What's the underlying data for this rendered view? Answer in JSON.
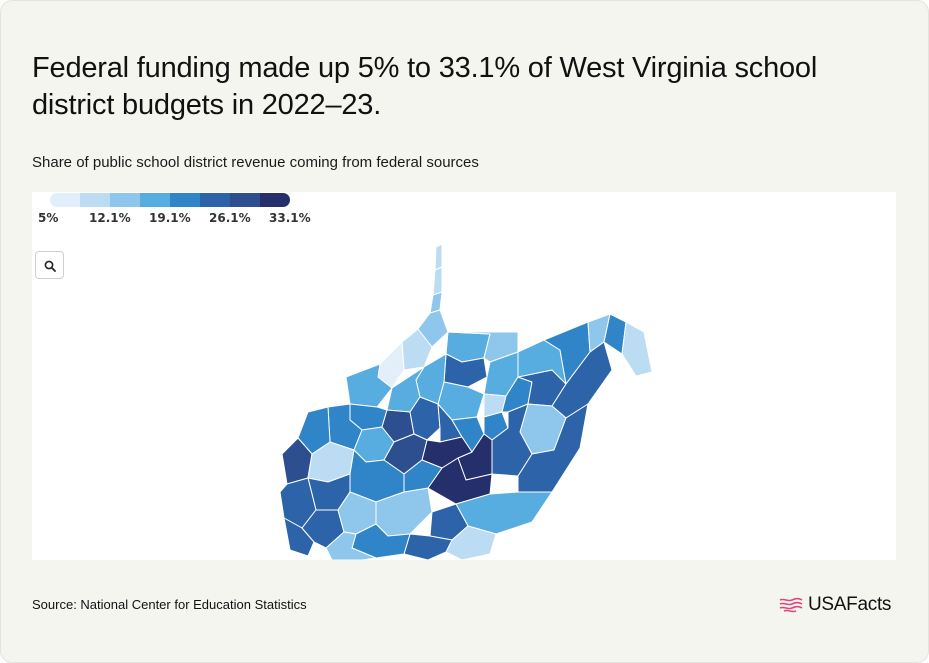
{
  "title": "Federal funding made up 5% to 33.1% of West Virginia school district budgets in 2022–23.",
  "subtitle": "Share of public school district revenue coming from federal sources",
  "legend": {
    "labels": [
      "5%",
      "12.1%",
      "19.1%",
      "26.1%",
      "33.1%"
    ],
    "colors": [
      "#e2effa",
      "#bcdcf3",
      "#8ec7eb",
      "#58ade0",
      "#2f85c8",
      "#2c63a9",
      "#2d4e8f",
      "#252f6b"
    ]
  },
  "zoom_button": {
    "icon": "search-icon"
  },
  "map": {
    "region": "West Virginia",
    "counties": [
      {
        "name": "Hancock",
        "color": "#bcdcf3"
      },
      {
        "name": "Brooke",
        "color": "#bcdcf3"
      },
      {
        "name": "Ohio",
        "color": "#8ec7eb"
      },
      {
        "name": "Marshall",
        "color": "#8ec7eb"
      },
      {
        "name": "Wetzel",
        "color": "#58ade0"
      },
      {
        "name": "Tyler",
        "color": "#bcdcf3"
      },
      {
        "name": "Pleasants",
        "color": "#e2effa"
      },
      {
        "name": "Wood",
        "color": "#58ade0"
      },
      {
        "name": "Monongalia",
        "color": "#8ec7eb"
      },
      {
        "name": "Marion",
        "color": "#2c63a9"
      },
      {
        "name": "Preston",
        "color": "#58ade0"
      },
      {
        "name": "Harrison",
        "color": "#58ade0"
      },
      {
        "name": "Taylor",
        "color": "#bcdcf3"
      },
      {
        "name": "Doddridge",
        "color": "#58ade0"
      },
      {
        "name": "Ritchie",
        "color": "#58ade0"
      },
      {
        "name": "Wirt",
        "color": "#2f85c8"
      },
      {
        "name": "Jackson",
        "color": "#2f85c8"
      },
      {
        "name": "Mason",
        "color": "#2f85c8"
      },
      {
        "name": "Cabell",
        "color": "#2d4e8f"
      },
      {
        "name": "Putnam",
        "color": "#bcdcf3"
      },
      {
        "name": "Roane",
        "color": "#58ade0"
      },
      {
        "name": "Calhoun",
        "color": "#2d4e8f"
      },
      {
        "name": "Gilmer",
        "color": "#2c63a9"
      },
      {
        "name": "Lewis",
        "color": "#2c63a9"
      },
      {
        "name": "Upshur",
        "color": "#2f85c8"
      },
      {
        "name": "Barbour",
        "color": "#2f85c8"
      },
      {
        "name": "Tucker",
        "color": "#2f85c8"
      },
      {
        "name": "Grant",
        "color": "#2c63a9"
      },
      {
        "name": "Mineral",
        "color": "#58ade0"
      },
      {
        "name": "Hampshire",
        "color": "#2f85c8"
      },
      {
        "name": "Morgan",
        "color": "#8ec7eb"
      },
      {
        "name": "Berkeley",
        "color": "#2f85c8"
      },
      {
        "name": "Jefferson",
        "color": "#bcdcf3"
      },
      {
        "name": "Hardy",
        "color": "#2c63a9"
      },
      {
        "name": "Pendleton",
        "color": "#8ec7eb"
      },
      {
        "name": "Randolph",
        "color": "#2c63a9"
      },
      {
        "name": "Pocahontas",
        "color": "#2c63a9"
      },
      {
        "name": "Webster",
        "color": "#252f6b"
      },
      {
        "name": "Braxton",
        "color": "#252f6b"
      },
      {
        "name": "Clay",
        "color": "#2d4e8f"
      },
      {
        "name": "Nicholas",
        "color": "#252f6b"
      },
      {
        "name": "Kanawha",
        "color": "#2f85c8"
      },
      {
        "name": "Lincoln",
        "color": "#2c63a9"
      },
      {
        "name": "Wayne",
        "color": "#2c63a9"
      },
      {
        "name": "Mingo",
        "color": "#2c63a9"
      },
      {
        "name": "Logan",
        "color": "#2c63a9"
      },
      {
        "name": "Boone",
        "color": "#8ec7eb"
      },
      {
        "name": "Raleigh",
        "color": "#8ec7eb"
      },
      {
        "name": "Fayette",
        "color": "#2f85c8"
      },
      {
        "name": "Greenbrier",
        "color": "#58ade0"
      },
      {
        "name": "Summers",
        "color": "#2c63a9"
      },
      {
        "name": "Monroe",
        "color": "#bcdcf3"
      },
      {
        "name": "Mercer",
        "color": "#2c63a9"
      },
      {
        "name": "Wyoming",
        "color": "#2f85c8"
      },
      {
        "name": "McDowell",
        "color": "#8ec7eb"
      }
    ]
  },
  "source": "Source: National Center for Education Statistics",
  "logo": {
    "text": "USAFacts",
    "accent": "#e0457b"
  }
}
